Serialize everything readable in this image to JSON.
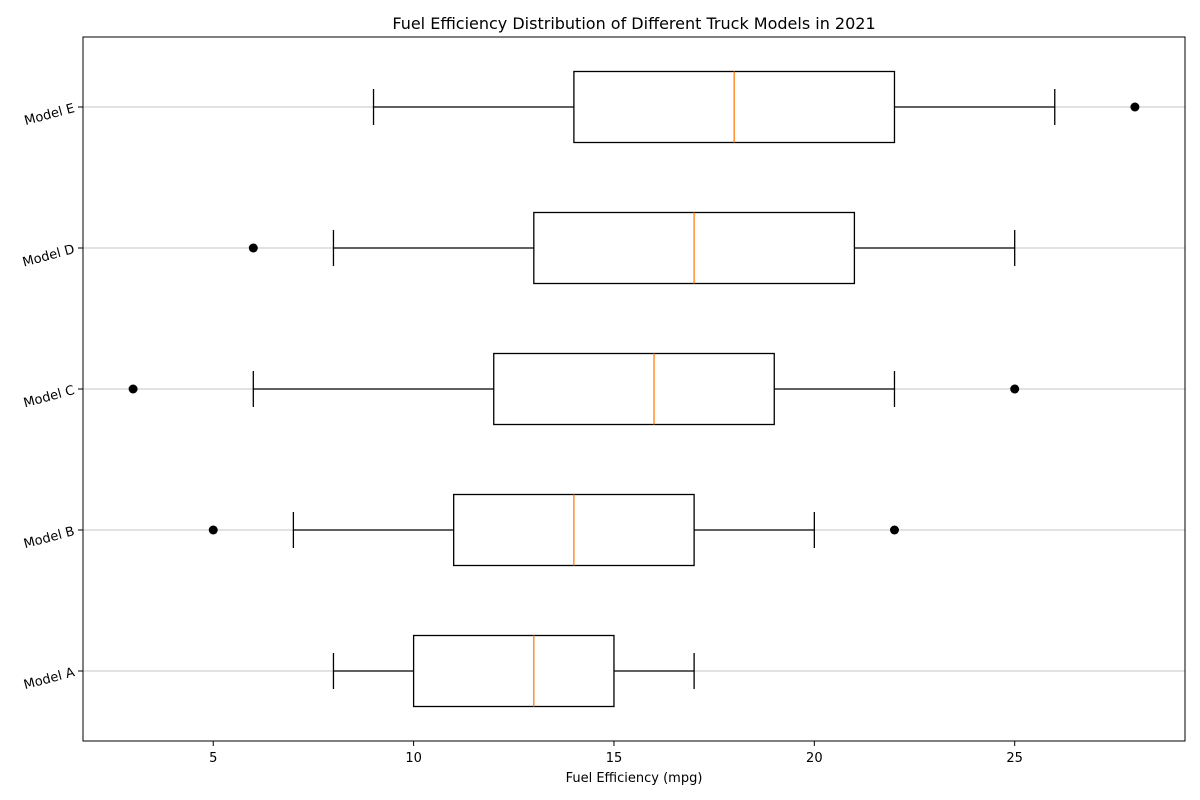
{
  "chart_data": {
    "type": "boxplot",
    "orientation": "horizontal",
    "title": "Fuel Efficiency Distribution of Different Truck Models in 2021",
    "xlabel": "Fuel Efficiency (mpg)",
    "ylabel": "",
    "xlim": [
      1.75,
      29.25
    ],
    "xticks": [
      5,
      10,
      15,
      20,
      25
    ],
    "grid": "horizontal lines at each category",
    "colors": {
      "box": "#000000",
      "median": "#ff7f0e",
      "grid": "#b0b0b0",
      "outlier": "#000000"
    },
    "categories": [
      "Model A",
      "Model B",
      "Model C",
      "Model D",
      "Model E"
    ],
    "boxes": [
      {
        "label": "Model A",
        "whisker_low": 8,
        "q1": 10,
        "median": 13,
        "q3": 15,
        "whisker_high": 17,
        "outliers": []
      },
      {
        "label": "Model B",
        "whisker_low": 7,
        "q1": 11,
        "median": 14,
        "q3": 17,
        "whisker_high": 20,
        "outliers": [
          5,
          22
        ]
      },
      {
        "label": "Model C",
        "whisker_low": 6,
        "q1": 12,
        "median": 16,
        "q3": 19,
        "whisker_high": 22,
        "outliers": [
          3,
          25
        ]
      },
      {
        "label": "Model D",
        "whisker_low": 8,
        "q1": 13,
        "median": 17,
        "q3": 21,
        "whisker_high": 25,
        "outliers": [
          6
        ]
      },
      {
        "label": "Model E",
        "whisker_low": 9,
        "q1": 14,
        "median": 18,
        "q3": 22,
        "whisker_high": 26,
        "outliers": [
          28
        ]
      }
    ]
  }
}
